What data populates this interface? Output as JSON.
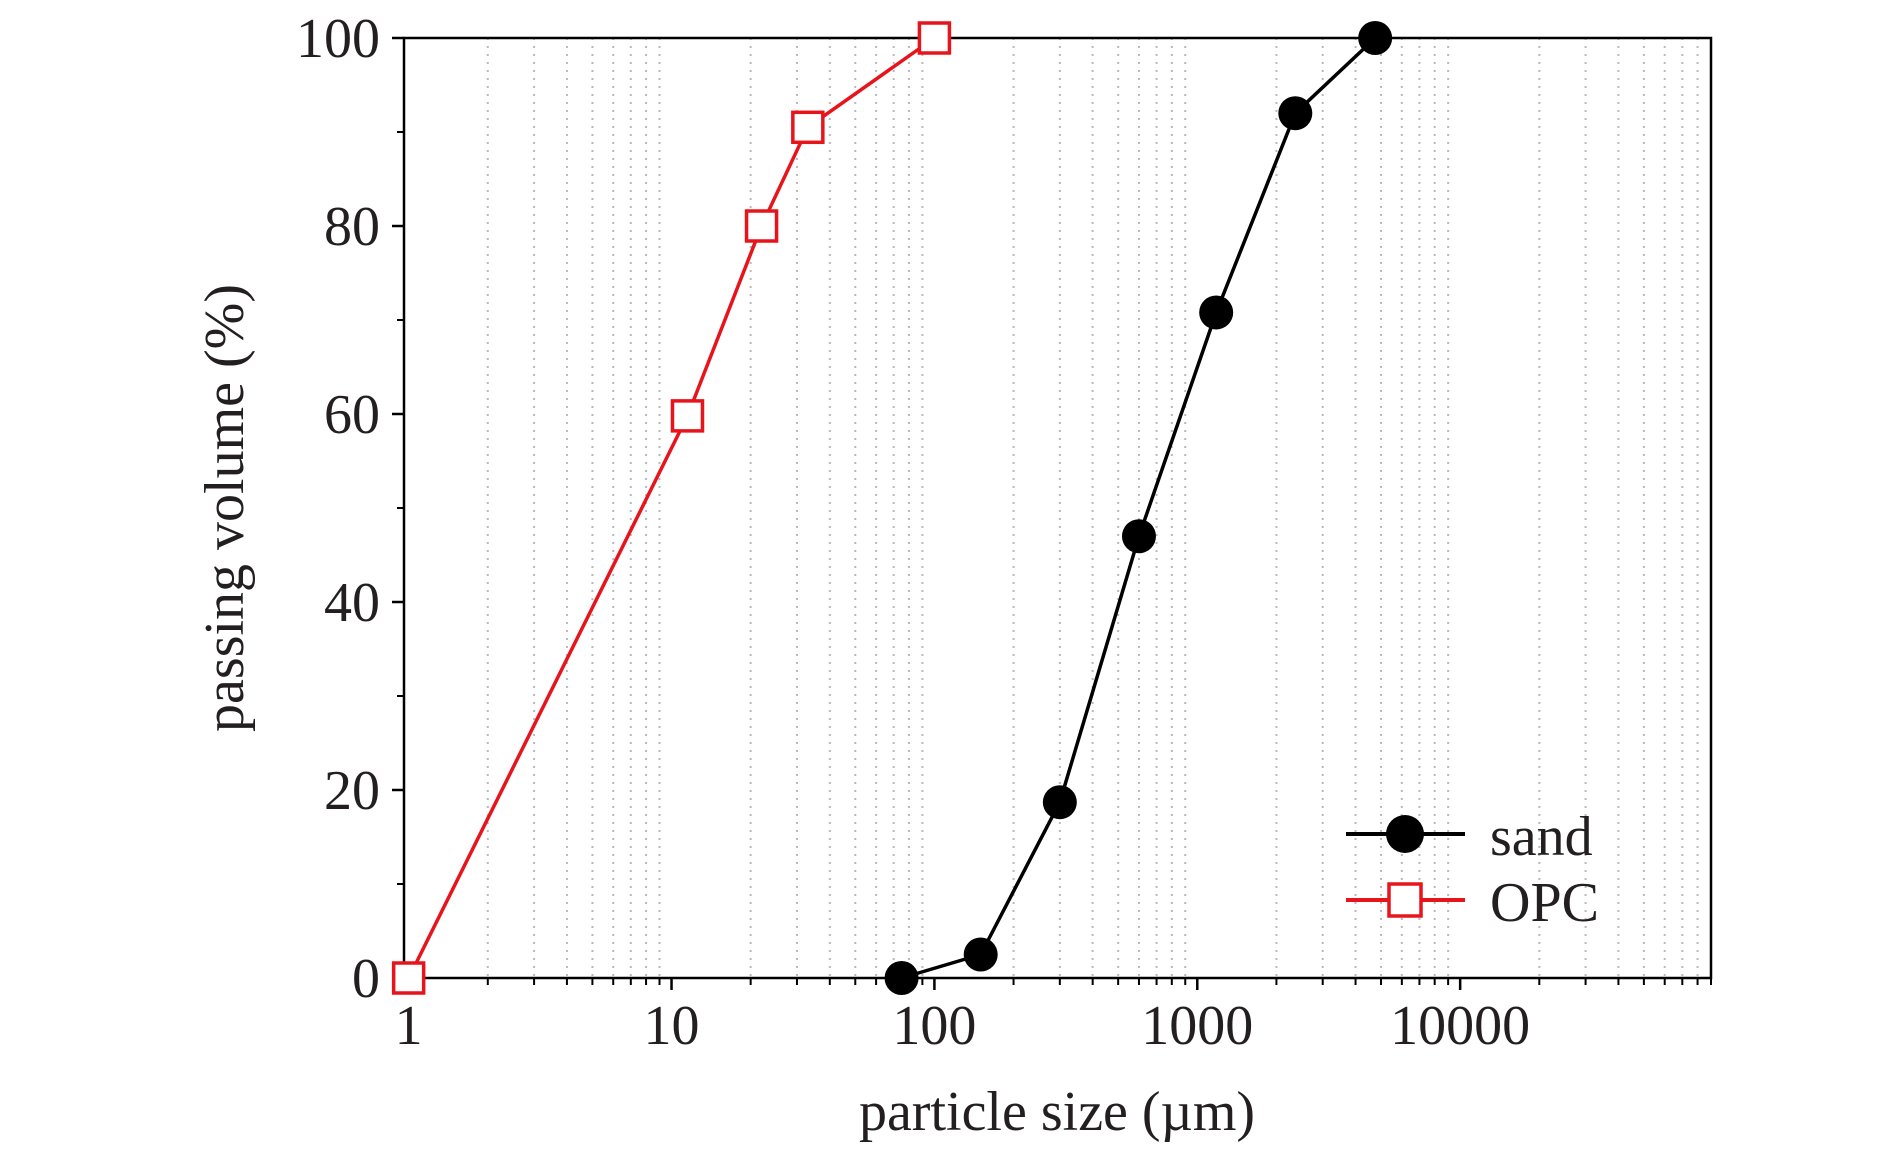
{
  "chart_data": {
    "type": "line",
    "title": "",
    "xlabel": "particle size (µm)",
    "ylabel": "passing volume (%)",
    "xscale": "log",
    "xlim": [
      0.96,
      90000
    ],
    "ylim": [
      0,
      100
    ],
    "xticks": [
      1,
      10,
      100,
      1000,
      10000
    ],
    "xtick_labels": [
      "1",
      "10",
      "100",
      "1000",
      "10000"
    ],
    "yticks": [
      0,
      20,
      40,
      60,
      80,
      100
    ],
    "ytick_labels": [
      "0",
      "20",
      "40",
      "60",
      "80",
      "100"
    ],
    "grid": "vertical-minor-dotted",
    "legend_position": "bottom-right",
    "series": [
      {
        "name": "sand",
        "color": "#000000",
        "marker": "filled-circle",
        "x": [
          75,
          150,
          300,
          600,
          1180,
          2360,
          4750
        ],
        "y": [
          0,
          2.5,
          18.7,
          47,
          70.8,
          92,
          100
        ]
      },
      {
        "name": "OPC",
        "color": "#e8141b",
        "marker": "open-square",
        "x": [
          1,
          11.5,
          22,
          33,
          100
        ],
        "y": [
          0,
          59.8,
          80,
          90.5,
          100
        ]
      }
    ]
  }
}
